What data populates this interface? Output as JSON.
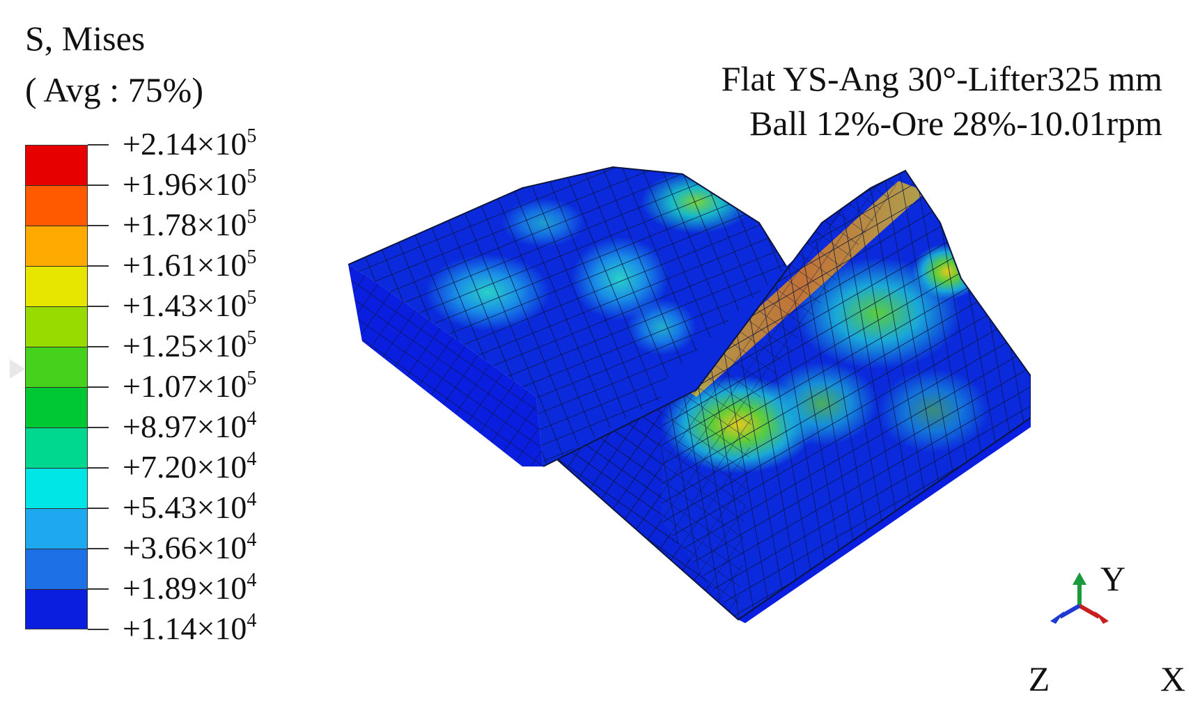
{
  "legend": {
    "title_line1": "S, Mises",
    "title_line2": "( Avg : 75%)",
    "band_colors": [
      "#e60000",
      "#ff5a00",
      "#ffaa00",
      "#e6e600",
      "#98db00",
      "#46d21c",
      "#00c832",
      "#00d890",
      "#00e6e6",
      "#1ea8f0",
      "#1e70e6",
      "#0a1ee0"
    ],
    "ticks": [
      {
        "mantissa": "+2.14×10",
        "exponent": "5"
      },
      {
        "mantissa": "+1.96×10",
        "exponent": "5"
      },
      {
        "mantissa": "+1.78×10",
        "exponent": "5"
      },
      {
        "mantissa": "+1.61×10",
        "exponent": "5"
      },
      {
        "mantissa": "+1.43×10",
        "exponent": "5"
      },
      {
        "mantissa": "+1.25×10",
        "exponent": "5"
      },
      {
        "mantissa": "+1.07×10",
        "exponent": "5"
      },
      {
        "mantissa": "+8.97×10",
        "exponent": "4"
      },
      {
        "mantissa": "+7.20×10",
        "exponent": "4"
      },
      {
        "mantissa": "+5.43×10",
        "exponent": "4"
      },
      {
        "mantissa": "+3.66×10",
        "exponent": "4"
      },
      {
        "mantissa": "+1.89×10",
        "exponent": "4"
      },
      {
        "mantissa": "+1.14×10",
        "exponent": "4"
      }
    ]
  },
  "case": {
    "line1": "Flat YS-Ang 30°-Lifter325 mm",
    "line2": "Ball 12%-Ore 28%-10.01rpm"
  },
  "triad": {
    "y_label": "Y",
    "z_label": "Z",
    "x_label": "X",
    "y_color": "#1a9a3a",
    "z_color": "#1e3ad0",
    "x_color": "#c81e1e"
  },
  "model": {
    "base_color": "#0a2adc",
    "mesh_color": "#0b1540"
  }
}
